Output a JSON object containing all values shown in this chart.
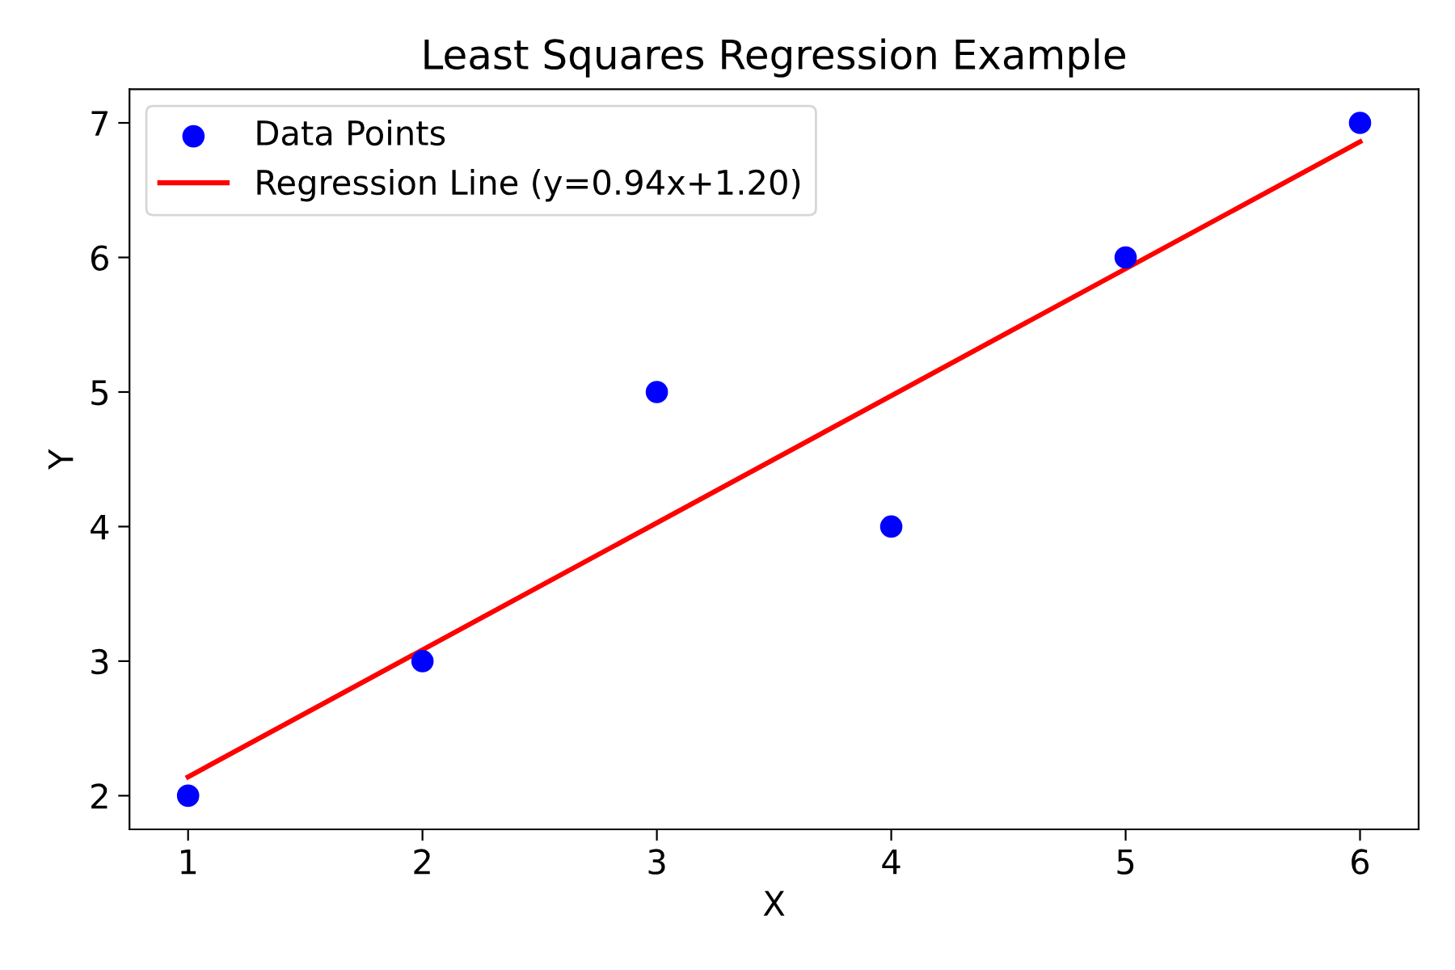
{
  "chart_data": {
    "type": "scatter",
    "title": "Least Squares Regression Example",
    "xlabel": "X",
    "ylabel": "Y",
    "x": [
      1,
      2,
      3,
      4,
      5,
      6
    ],
    "series": [
      {
        "name": "Data Points",
        "color": "#0000ff",
        "marker": "circle",
        "values": [
          2,
          3,
          5,
          4,
          6,
          7
        ]
      },
      {
        "name": "Regression Line (y=0.94x+1.20)",
        "type": "line",
        "color": "#ff0000",
        "x": [
          1,
          6
        ],
        "values": [
          2.14,
          6.86
        ]
      }
    ],
    "xlim": [
      0.75,
      6.25
    ],
    "ylim": [
      1.75,
      7.25
    ],
    "xticks": [
      1,
      2,
      3,
      4,
      5,
      6
    ],
    "yticks": [
      2,
      3,
      4,
      5,
      6,
      7
    ],
    "line_style": "solid",
    "grid": false,
    "legend": "top left"
  }
}
